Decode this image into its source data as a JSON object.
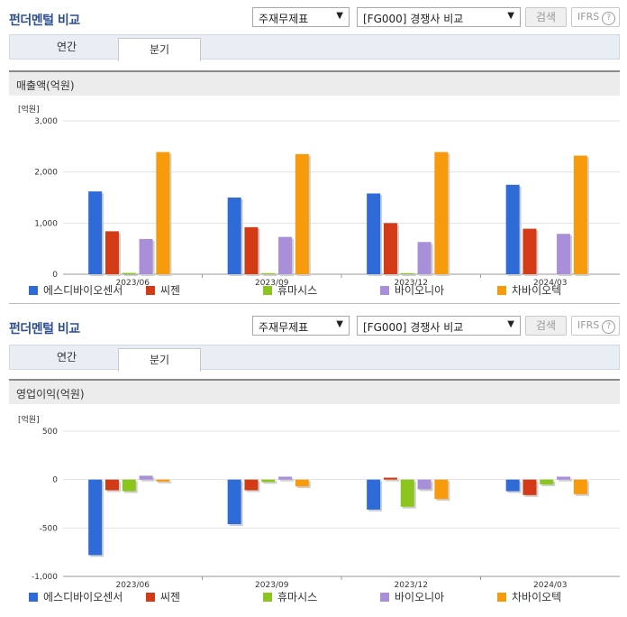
{
  "colors": {
    "에스디바이오센서": "#2f6bd8",
    "씨젠": "#d23b16",
    "휴마시스": "#8cc51d",
    "바이오니아": "#a98fd9",
    "차바이오텍": "#f79a0b"
  },
  "sections": [
    {
      "title": "펀더멘털 비교",
      "select1": "주재무제표",
      "select2": "[FG000] 경쟁사 비교",
      "search": "검색",
      "ifrs": "IFRS",
      "tabs": [
        "연간",
        "분기"
      ],
      "active_tab": "분기",
      "chart_header": "매출액(억원)"
    },
    {
      "title": "펀더멘털 비교",
      "select1": "주재무제표",
      "select2": "[FG000] 경쟁사 비교",
      "search": "검색",
      "ifrs": "IFRS",
      "tabs": [
        "연간",
        "분기"
      ],
      "active_tab": "분기",
      "chart_header": "영업이익(억원)"
    }
  ],
  "chart_data": [
    {
      "type": "bar",
      "title": "매출액(억원)",
      "unit_label": "[억원]",
      "categories": [
        "2023/06",
        "2023/09",
        "2023/12",
        "2024/03"
      ],
      "yticks": [
        "3,000",
        "2,000",
        "1,000",
        "0"
      ],
      "ylim": [
        0,
        3000
      ],
      "series": [
        {
          "name": "에스디바이오센서",
          "values": [
            1620,
            1500,
            1580,
            1750
          ]
        },
        {
          "name": "씨젠",
          "values": [
            840,
            920,
            1000,
            890
          ]
        },
        {
          "name": "휴마시스",
          "values": [
            25,
            20,
            20,
            0
          ]
        },
        {
          "name": "바이오니아",
          "values": [
            690,
            730,
            630,
            790
          ]
        },
        {
          "name": "차바이오텍",
          "values": [
            2390,
            2350,
            2390,
            2320
          ]
        }
      ],
      "legend_placement": "bottom",
      "grid": true
    },
    {
      "type": "bar",
      "title": "영업이익(억원)",
      "unit_label": "[억원]",
      "categories": [
        "2023/06",
        "2023/09",
        "2023/12",
        "2024/03"
      ],
      "yticks": [
        "500",
        "0",
        "-500",
        "-1,000"
      ],
      "ylim": [
        -1000,
        500
      ],
      "series": [
        {
          "name": "에스디바이오센서",
          "values": [
            -780,
            -460,
            -310,
            -120
          ]
        },
        {
          "name": "씨젠",
          "values": [
            -110,
            -110,
            20,
            -160
          ]
        },
        {
          "name": "휴마시스",
          "values": [
            -120,
            -25,
            -280,
            -50
          ]
        },
        {
          "name": "바이오니아",
          "values": [
            40,
            30,
            -100,
            30
          ]
        },
        {
          "name": "차바이오텍",
          "values": [
            -20,
            -70,
            -200,
            -150
          ]
        }
      ],
      "legend_placement": "bottom",
      "grid": true
    }
  ]
}
